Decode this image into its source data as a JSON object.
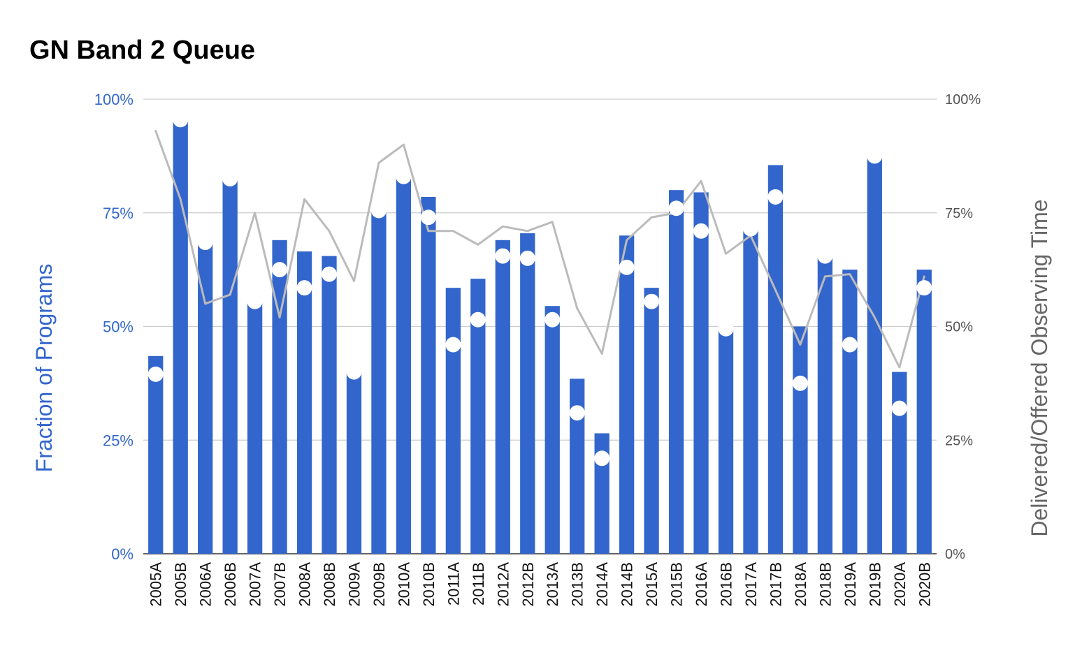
{
  "chart_data": {
    "type": "bar",
    "title": "GN Band 2 Queue",
    "xlabel": "",
    "ylabel": "Fraction of Programs",
    "y2label": "Delivered/Offered Observing Time",
    "ylim": [
      0,
      1
    ],
    "y2lim": [
      0,
      1
    ],
    "yticks": [
      "0%",
      "25%",
      "50%",
      "75%",
      "100%"
    ],
    "y2ticks": [
      "0%",
      "25%",
      "50%",
      "75%",
      "100%"
    ],
    "grid": true,
    "categories": [
      "2005A",
      "2005B",
      "2006A",
      "2006B",
      "2007A",
      "2007B",
      "2008A",
      "2008B",
      "2009A",
      "2009B",
      "2010A",
      "2010B",
      "2011A",
      "2011B",
      "2012A",
      "2012B",
      "2013A",
      "2013B",
      "2014A",
      "2014B",
      "2015A",
      "2015B",
      "2016A",
      "2016B",
      "2017A",
      "2017B",
      "2018A",
      "2018B",
      "2019A",
      "2019B",
      "2020A",
      "2020B"
    ],
    "series": [
      {
        "kind": "bar",
        "axis": "left",
        "color": "#3366cc",
        "values": [
          0.435,
          0.955,
          0.685,
          0.825,
          0.555,
          0.69,
          0.665,
          0.655,
          0.4,
          0.755,
          0.83,
          0.785,
          0.585,
          0.605,
          0.69,
          0.705,
          0.545,
          0.385,
          0.265,
          0.7,
          0.585,
          0.8,
          0.795,
          0.495,
          0.715,
          0.855,
          0.5,
          0.655,
          0.625,
          0.875,
          0.4,
          0.625
        ]
      },
      {
        "kind": "point",
        "axis": "left",
        "color": "#ffffff",
        "values": [
          0.395,
          0.955,
          0.685,
          0.825,
          0.555,
          0.625,
          0.585,
          0.615,
          0.4,
          0.755,
          0.83,
          0.74,
          0.46,
          0.515,
          0.655,
          0.65,
          0.515,
          0.31,
          0.21,
          0.63,
          0.555,
          0.76,
          0.71,
          0.495,
          0.715,
          0.785,
          0.375,
          0.655,
          0.46,
          0.875,
          0.32,
          0.585
        ]
      },
      {
        "kind": "line",
        "axis": "right",
        "color": "#bbbbbb",
        "values": [
          0.93,
          0.78,
          0.55,
          0.57,
          0.75,
          0.52,
          0.78,
          0.71,
          0.6,
          0.86,
          0.9,
          0.71,
          0.71,
          0.68,
          0.72,
          0.71,
          0.73,
          0.54,
          0.44,
          0.69,
          0.74,
          0.75,
          0.82,
          0.66,
          0.7,
          0.58,
          0.46,
          0.61,
          0.615,
          0.52,
          0.41,
          0.61
        ]
      }
    ]
  }
}
